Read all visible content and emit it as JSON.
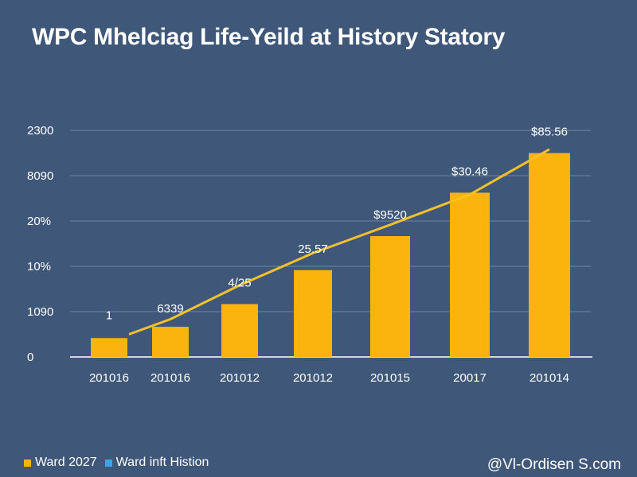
{
  "chart_data": {
    "type": "bar",
    "title": "WPC Mhelciag Life-Yeild at History Statory",
    "categories": [
      "201016",
      "201016",
      "201012",
      "201012",
      "201015",
      "20017",
      "201014"
    ],
    "values": [
      10,
      16,
      28,
      46,
      64,
      87,
      108
    ],
    "ylim": [
      0,
      120
    ],
    "ytick_labels": [
      "0",
      "1090",
      "10%",
      "20%",
      "8090",
      "2300"
    ],
    "data_labels": [
      "1",
      "6339",
      "4/25",
      "25.57",
      "$9520",
      "$30.46",
      "$85.56"
    ],
    "trend_values": [
      12,
      20,
      38,
      55,
      70,
      86,
      110
    ],
    "bar_color": "#fbb40d",
    "line_color": "#f6c12a",
    "grid": true,
    "xlabel": "",
    "ylabel": ""
  },
  "legend": {
    "items": [
      {
        "label": "Ward 2027",
        "color": "#fbb40d"
      },
      {
        "label": "Ward inft Histion",
        "color": "#3fa3e6"
      }
    ]
  },
  "watermark": "@Vl-Ordisen S.com"
}
